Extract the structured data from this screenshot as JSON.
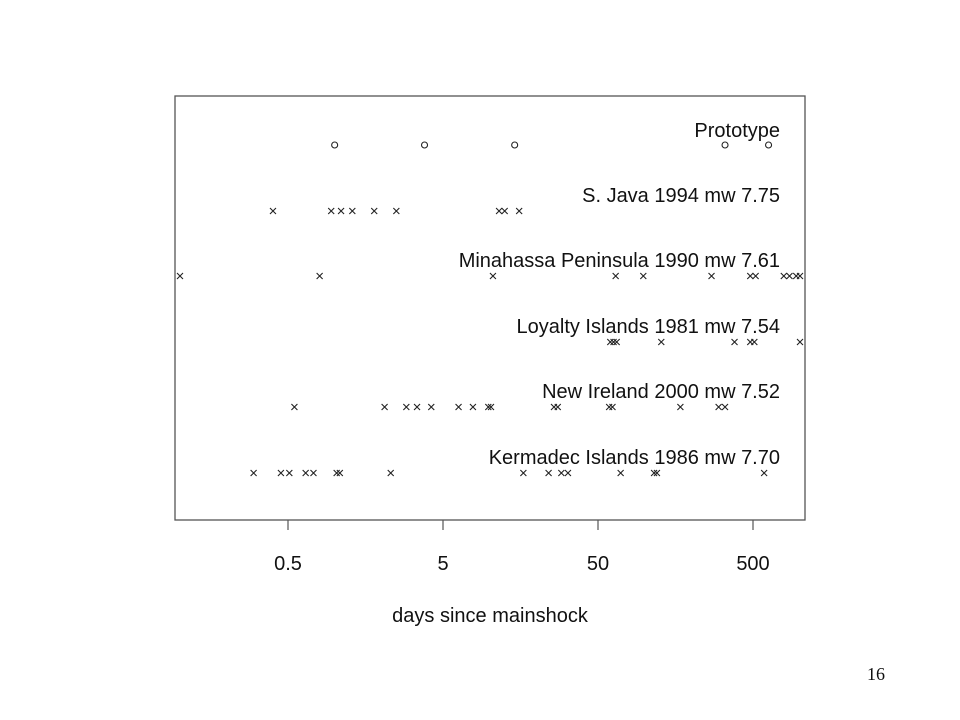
{
  "page": {
    "number": "16"
  },
  "chart_data": {
    "type": "scatter",
    "xscale": "log",
    "xlabel": "days since mainshock",
    "ylabel": "",
    "xticks": [
      0.5,
      5,
      50,
      500
    ],
    "xtick_labels": [
      "0.5",
      "5",
      "50",
      "500"
    ],
    "xlim": [
      0.06,
      1100
    ],
    "grid": false,
    "legend": "none",
    "colors": {
      "axis": "#555555",
      "point": "#222222",
      "text": "#111111"
    },
    "series": [
      {
        "name": "Prototype",
        "marker": "o",
        "x": [
          1.0,
          3.8,
          14.5,
          330,
          630
        ]
      },
      {
        "name": "S. Java 1994 mw 7.75",
        "marker": "x",
        "x": [
          0.4,
          0.95,
          1.1,
          1.3,
          1.8,
          2.5,
          11.5,
          12.5,
          15.5
        ]
      },
      {
        "name": "Minahassa Peninsula 1990 mw 7.61",
        "marker": "x",
        "x": [
          0.075,
          0.8,
          10.5,
          65,
          98,
          270,
          480,
          520,
          790,
          860,
          950,
          1300
        ]
      },
      {
        "name": "Loyalty Islands 1981 mw 7.54",
        "marker": "x",
        "x": [
          60,
          63,
          66,
          128,
          380,
          480,
          510,
          1300
        ]
      },
      {
        "name": "New Ireland 2000 mw 7.52",
        "marker": "x",
        "x": [
          0.55,
          2.1,
          2.9,
          3.4,
          4.2,
          6.3,
          7.8,
          9.8,
          10.2,
          26,
          27.5,
          59,
          62,
          170,
          300,
          330
        ]
      },
      {
        "name": "Kermadec Islands 1986 mw 7.70",
        "marker": "x",
        "x": [
          0.3,
          0.45,
          0.51,
          0.65,
          0.73,
          1.03,
          1.08,
          2.3,
          16.5,
          24,
          29,
          32,
          70,
          115,
          120,
          590
        ]
      }
    ]
  }
}
